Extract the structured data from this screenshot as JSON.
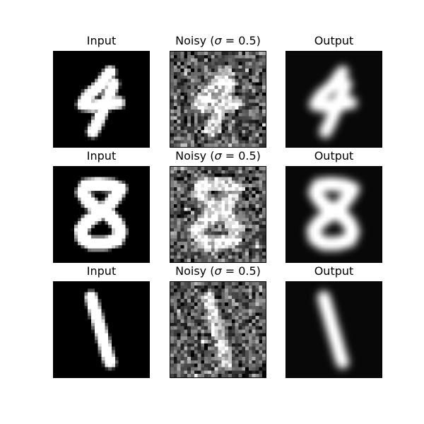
{
  "figure": {
    "background": "#ffffff",
    "rows": [
      {
        "digit": "4",
        "panels": [
          {
            "title": "Input",
            "kind": "input"
          },
          {
            "title_pre": "Noisy (",
            "title_sym": "σ",
            "title_post": " = 0.5)",
            "kind": "noisy"
          },
          {
            "title": "Output",
            "kind": "output"
          }
        ]
      },
      {
        "digit": "8",
        "panels": [
          {
            "title": "Input",
            "kind": "input"
          },
          {
            "title_pre": "Noisy (",
            "title_sym": "σ",
            "title_post": " = 0.5)",
            "kind": "noisy"
          },
          {
            "title": "Output",
            "kind": "output"
          }
        ]
      },
      {
        "digit": "1",
        "panels": [
          {
            "title": "Input",
            "kind": "input"
          },
          {
            "title_pre": "Noisy (",
            "title_sym": "σ",
            "title_post": " = 0.5)",
            "kind": "noisy"
          },
          {
            "title": "Output",
            "kind": "output"
          }
        ]
      }
    ],
    "noise_sigma": 0.5,
    "colormap": "grayscale"
  }
}
